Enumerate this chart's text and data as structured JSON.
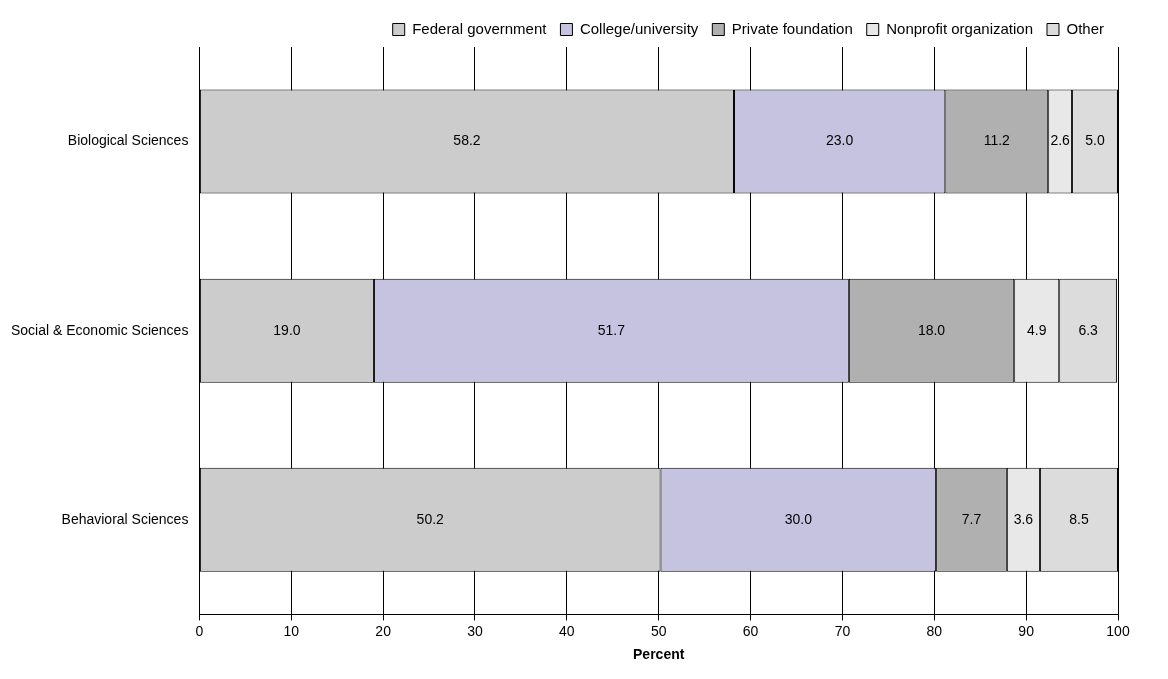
{
  "chart_data": {
    "type": "bar",
    "orientation": "horizontal",
    "stacked": true,
    "xlabel": "Percent",
    "categories": [
      "Biological Sciences",
      "Social & Economic Sciences",
      "Behavioral Sciences"
    ],
    "series": [
      {
        "name": "Federal government",
        "color": "#cccccc",
        "values": [
          58.2,
          19.0,
          50.2
        ],
        "value_labels": [
          "58.2",
          "19.0",
          "50.2"
        ]
      },
      {
        "name": "College/university",
        "color": "#c6c3e0",
        "values": [
          23.0,
          51.7,
          30.0
        ],
        "value_labels": [
          "23.0",
          "51.7",
          "30.0"
        ]
      },
      {
        "name": "Private foundation",
        "color": "#b0b0b0",
        "values": [
          11.2,
          18.0,
          7.7
        ],
        "value_labels": [
          "11.2",
          "18.0",
          "7.7"
        ]
      },
      {
        "name": "Nonprofit organization",
        "color": "#e8e8e8",
        "values": [
          2.6,
          4.9,
          3.6
        ],
        "value_labels": [
          "2.6",
          "4.9",
          "3.6"
        ]
      },
      {
        "name": "Other",
        "color": "#dcdcdc",
        "values": [
          5.0,
          6.3,
          8.5
        ],
        "value_labels": [
          "5.0",
          "6.3",
          "8.5"
        ]
      }
    ],
    "xlim": [
      0,
      100
    ],
    "xticks": [
      0,
      10,
      20,
      30,
      40,
      50,
      60,
      70,
      80,
      90,
      100
    ],
    "grid": "x",
    "legend": "top right"
  }
}
